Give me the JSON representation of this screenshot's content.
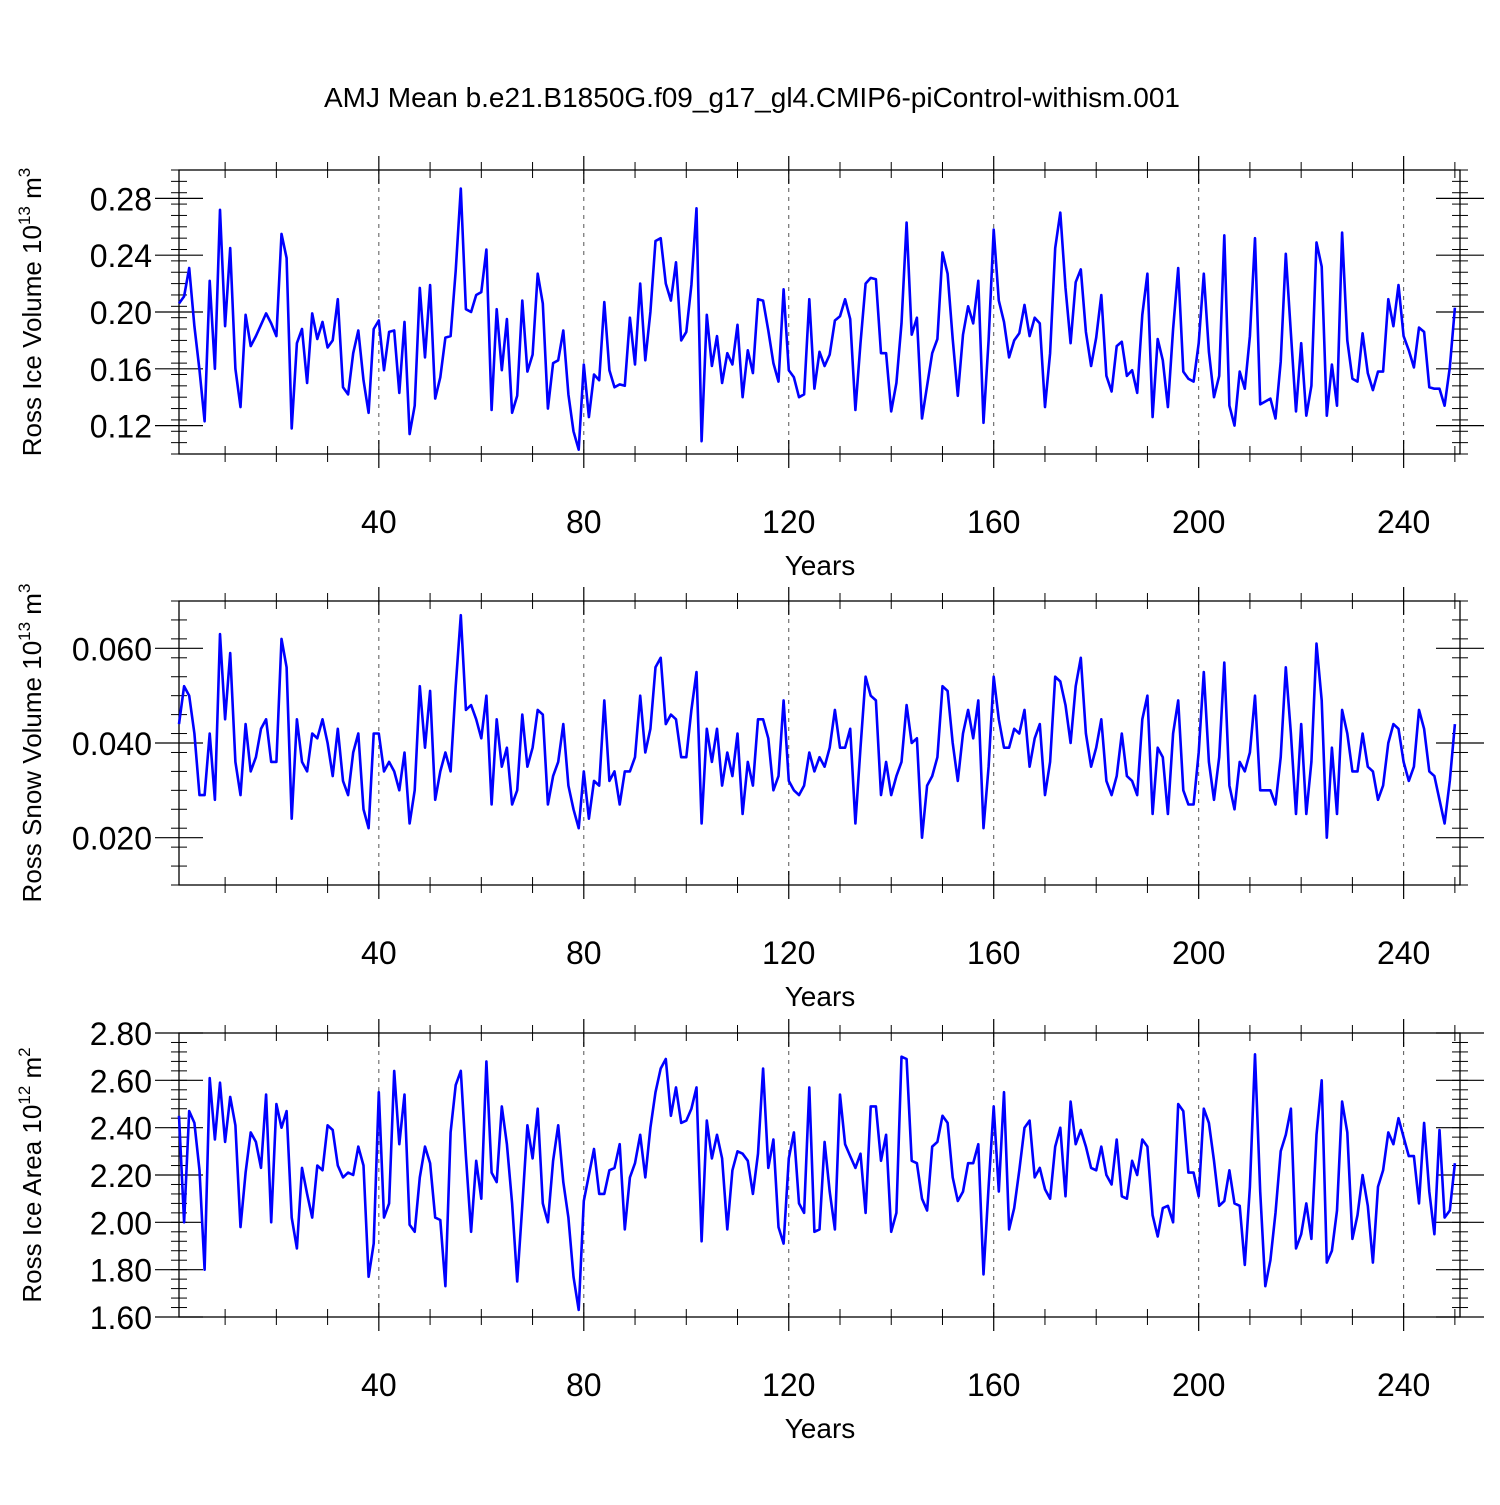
{
  "title": "AMJ Mean b.e21.B1850G.f09_g17_gl4.CMIP6-piControl-withism.001",
  "line_color": "#0000ff",
  "chart_data": [
    {
      "type": "line",
      "ylabel_main": "Ross Ice Volume 10",
      "ylabel_exp": "13",
      "ylabel_unit": " m",
      "ylabel_unit_exp": "3",
      "xlabel": "Years",
      "xlim": [
        1,
        251
      ],
      "ylim": [
        0.1,
        0.3
      ],
      "xticks": [
        40,
        80,
        120,
        160,
        200,
        240
      ],
      "xtick_labels": [
        "40",
        "80",
        "120",
        "160",
        "200",
        "240"
      ],
      "yticks": [
        0.12,
        0.16,
        0.2,
        0.24,
        0.28
      ],
      "ytick_labels": [
        "0.12",
        "0.16",
        "0.20",
        "0.24",
        "0.28"
      ],
      "grid": "vertical dashed at major x ticks",
      "series": [
        {
          "x_start": 1,
          "values": [
            0.206,
            0.211,
            0.231,
            0.19,
            0.159,
            0.123,
            0.222,
            0.16,
            0.272,
            0.19,
            0.245,
            0.16,
            0.133,
            0.198,
            0.176,
            0.183,
            0.191,
            0.199,
            0.192,
            0.183,
            0.255,
            0.238,
            0.118,
            0.178,
            0.188,
            0.15,
            0.199,
            0.181,
            0.193,
            0.175,
            0.18,
            0.209,
            0.147,
            0.142,
            0.171,
            0.187,
            0.152,
            0.129,
            0.188,
            0.194,
            0.159,
            0.186,
            0.187,
            0.143,
            0.193,
            0.114,
            0.134,
            0.217,
            0.168,
            0.219,
            0.139,
            0.154,
            0.182,
            0.183,
            0.229,
            0.287,
            0.202,
            0.2,
            0.212,
            0.214,
            0.244,
            0.131,
            0.202,
            0.159,
            0.195,
            0.129,
            0.141,
            0.208,
            0.158,
            0.17,
            0.227,
            0.206,
            0.132,
            0.164,
            0.166,
            0.187,
            0.142,
            0.116,
            0.103,
            0.163,
            0.126,
            0.156,
            0.152,
            0.207,
            0.159,
            0.147,
            0.149,
            0.148,
            0.196,
            0.163,
            0.22,
            0.166,
            0.2,
            0.25,
            0.252,
            0.22,
            0.208,
            0.235,
            0.18,
            0.186,
            0.219,
            0.273,
            0.109,
            0.198,
            0.162,
            0.183,
            0.15,
            0.171,
            0.163,
            0.191,
            0.14,
            0.173,
            0.157,
            0.209,
            0.208,
            0.187,
            0.164,
            0.151,
            0.216,
            0.159,
            0.154,
            0.14,
            0.142,
            0.209,
            0.146,
            0.172,
            0.162,
            0.17,
            0.194,
            0.197,
            0.209,
            0.195,
            0.131,
            0.178,
            0.22,
            0.224,
            0.223,
            0.171,
            0.171,
            0.13,
            0.15,
            0.192,
            0.263,
            0.184,
            0.196,
            0.125,
            0.148,
            0.171,
            0.181,
            0.242,
            0.227,
            0.181,
            0.141,
            0.184,
            0.204,
            0.192,
            0.222,
            0.122,
            0.18,
            0.258,
            0.208,
            0.193,
            0.168,
            0.18,
            0.185,
            0.205,
            0.183,
            0.196,
            0.192,
            0.133,
            0.171,
            0.245,
            0.27,
            0.217,
            0.178,
            0.221,
            0.23,
            0.186,
            0.162,
            0.182,
            0.212,
            0.155,
            0.144,
            0.176,
            0.179,
            0.155,
            0.159,
            0.143,
            0.198,
            0.227,
            0.126,
            0.181,
            0.166,
            0.133,
            0.188,
            0.231,
            0.158,
            0.153,
            0.151,
            0.178,
            0.227,
            0.172,
            0.14,
            0.155,
            0.254,
            0.134,
            0.12,
            0.158,
            0.146,
            0.183,
            0.252,
            0.135,
            0.137,
            0.139,
            0.125,
            0.165,
            0.241,
            0.185,
            0.13,
            0.178,
            0.127,
            0.148,
            0.249,
            0.232,
            0.127,
            0.163,
            0.134,
            0.256,
            0.18,
            0.153,
            0.151,
            0.185,
            0.157,
            0.145,
            0.158,
            0.158,
            0.209,
            0.19,
            0.219,
            0.183,
            0.173,
            0.161,
            0.189,
            0.186,
            0.147,
            0.146,
            0.146,
            0.134,
            0.161,
            0.203
          ]
        }
      ]
    },
    {
      "type": "line",
      "ylabel_main": "Ross Snow Volume 10",
      "ylabel_exp": "13",
      "ylabel_unit": " m",
      "ylabel_unit_exp": "3",
      "xlabel": "Years",
      "xlim": [
        1,
        251
      ],
      "ylim": [
        0.01,
        0.07
      ],
      "xticks": [
        40,
        80,
        120,
        160,
        200,
        240
      ],
      "xtick_labels": [
        "40",
        "80",
        "120",
        "160",
        "200",
        "240"
      ],
      "yticks": [
        0.02,
        0.04,
        0.06
      ],
      "ytick_labels": [
        "0.020",
        "0.040",
        "0.060"
      ],
      "grid": "vertical dashed at major x ticks",
      "series": [
        {
          "x_start": 1,
          "values": [
            0.044,
            0.052,
            0.05,
            0.042,
            0.029,
            0.029,
            0.042,
            0.028,
            0.063,
            0.045,
            0.059,
            0.036,
            0.029,
            0.044,
            0.034,
            0.037,
            0.043,
            0.045,
            0.036,
            0.036,
            0.062,
            0.056,
            0.024,
            0.045,
            0.036,
            0.034,
            0.042,
            0.041,
            0.045,
            0.04,
            0.033,
            0.043,
            0.032,
            0.029,
            0.038,
            0.042,
            0.026,
            0.022,
            0.042,
            0.042,
            0.034,
            0.036,
            0.034,
            0.03,
            0.038,
            0.023,
            0.03,
            0.052,
            0.039,
            0.051,
            0.028,
            0.034,
            0.038,
            0.034,
            0.052,
            0.067,
            0.047,
            0.048,
            0.045,
            0.041,
            0.05,
            0.027,
            0.045,
            0.035,
            0.039,
            0.027,
            0.03,
            0.046,
            0.035,
            0.039,
            0.047,
            0.046,
            0.027,
            0.033,
            0.036,
            0.044,
            0.031,
            0.026,
            0.022,
            0.034,
            0.024,
            0.032,
            0.031,
            0.049,
            0.032,
            0.034,
            0.027,
            0.034,
            0.034,
            0.037,
            0.05,
            0.038,
            0.043,
            0.056,
            0.058,
            0.044,
            0.046,
            0.045,
            0.037,
            0.037,
            0.047,
            0.055,
            0.023,
            0.043,
            0.036,
            0.043,
            0.031,
            0.038,
            0.033,
            0.042,
            0.025,
            0.036,
            0.031,
            0.045,
            0.045,
            0.041,
            0.03,
            0.033,
            0.049,
            0.032,
            0.03,
            0.029,
            0.031,
            0.038,
            0.034,
            0.037,
            0.035,
            0.039,
            0.047,
            0.039,
            0.039,
            0.043,
            0.023,
            0.039,
            0.054,
            0.05,
            0.049,
            0.029,
            0.036,
            0.029,
            0.033,
            0.036,
            0.048,
            0.04,
            0.041,
            0.02,
            0.031,
            0.033,
            0.037,
            0.052,
            0.051,
            0.04,
            0.032,
            0.042,
            0.047,
            0.041,
            0.049,
            0.022,
            0.035,
            0.054,
            0.045,
            0.039,
            0.039,
            0.043,
            0.042,
            0.047,
            0.035,
            0.041,
            0.044,
            0.029,
            0.036,
            0.054,
            0.053,
            0.048,
            0.04,
            0.052,
            0.058,
            0.042,
            0.035,
            0.039,
            0.045,
            0.032,
            0.029,
            0.033,
            0.042,
            0.033,
            0.032,
            0.029,
            0.045,
            0.05,
            0.025,
            0.039,
            0.037,
            0.025,
            0.042,
            0.049,
            0.03,
            0.027,
            0.027,
            0.038,
            0.055,
            0.036,
            0.028,
            0.037,
            0.057,
            0.031,
            0.026,
            0.036,
            0.034,
            0.038,
            0.05,
            0.03,
            0.03,
            0.03,
            0.027,
            0.037,
            0.056,
            0.042,
            0.025,
            0.044,
            0.025,
            0.036,
            0.061,
            0.049,
            0.02,
            0.039,
            0.025,
            0.047,
            0.042,
            0.034,
            0.034,
            0.042,
            0.035,
            0.034,
            0.028,
            0.031,
            0.04,
            0.044,
            0.043,
            0.036,
            0.032,
            0.035,
            0.047,
            0.043,
            0.034,
            0.033,
            0.028,
            0.023,
            0.032,
            0.044
          ]
        }
      ]
    },
    {
      "type": "line",
      "ylabel_main": "Ross Ice Area 10",
      "ylabel_exp": "12",
      "ylabel_unit": " m",
      "ylabel_unit_exp": "2",
      "xlabel": "Years",
      "xlim": [
        1,
        251
      ],
      "ylim": [
        1.6,
        2.8
      ],
      "xticks": [
        40,
        80,
        120,
        160,
        200,
        240
      ],
      "xtick_labels": [
        "40",
        "80",
        "120",
        "160",
        "200",
        "240"
      ],
      "yticks": [
        1.6,
        1.8,
        2.0,
        2.2,
        2.4,
        2.6,
        2.8
      ],
      "ytick_labels": [
        "1.60",
        "1.80",
        "2.00",
        "2.20",
        "2.40",
        "2.60",
        "2.80"
      ],
      "grid": "vertical dashed at major x ticks",
      "series": [
        {
          "x_start": 1,
          "values": [
            2.45,
            2.0,
            2.47,
            2.42,
            2.22,
            1.8,
            2.61,
            2.35,
            2.59,
            2.34,
            2.53,
            2.41,
            1.98,
            2.21,
            2.38,
            2.34,
            2.23,
            2.54,
            2.0,
            2.5,
            2.4,
            2.47,
            2.02,
            1.89,
            2.23,
            2.12,
            2.02,
            2.24,
            2.22,
            2.41,
            2.39,
            2.24,
            2.19,
            2.21,
            2.2,
            2.32,
            2.24,
            1.77,
            1.91,
            2.55,
            2.02,
            2.08,
            2.64,
            2.33,
            2.54,
            1.99,
            1.96,
            2.19,
            2.32,
            2.25,
            2.02,
            2.01,
            1.73,
            2.38,
            2.58,
            2.64,
            2.28,
            1.96,
            2.26,
            2.1,
            2.68,
            2.21,
            2.17,
            2.49,
            2.33,
            2.08,
            1.75,
            2.07,
            2.41,
            2.27,
            2.48,
            2.08,
            2.0,
            2.26,
            2.41,
            2.17,
            2.02,
            1.77,
            1.63,
            2.09,
            2.2,
            2.31,
            2.12,
            2.12,
            2.22,
            2.23,
            2.33,
            1.97,
            2.19,
            2.25,
            2.37,
            2.19,
            2.4,
            2.55,
            2.65,
            2.69,
            2.45,
            2.57,
            2.42,
            2.43,
            2.48,
            2.57,
            1.92,
            2.43,
            2.27,
            2.37,
            2.27,
            1.97,
            2.22,
            2.3,
            2.29,
            2.26,
            2.12,
            2.29,
            2.65,
            2.23,
            2.35,
            1.98,
            1.91,
            2.27,
            2.38,
            2.08,
            2.04,
            2.57,
            1.96,
            1.97,
            2.34,
            2.13,
            1.97,
            2.54,
            2.33,
            2.28,
            2.23,
            2.29,
            2.04,
            2.49,
            2.49,
            2.26,
            2.37,
            1.96,
            2.04,
            2.7,
            2.69,
            2.26,
            2.25,
            2.1,
            2.05,
            2.32,
            2.34,
            2.45,
            2.42,
            2.19,
            2.09,
            2.13,
            2.25,
            2.25,
            2.33,
            1.78,
            2.15,
            2.49,
            2.13,
            2.55,
            1.97,
            2.06,
            2.22,
            2.4,
            2.43,
            2.19,
            2.23,
            2.14,
            2.1,
            2.32,
            2.4,
            2.11,
            2.51,
            2.33,
            2.39,
            2.32,
            2.23,
            2.22,
            2.32,
            2.2,
            2.16,
            2.35,
            2.11,
            2.1,
            2.26,
            2.2,
            2.35,
            2.32,
            2.03,
            1.94,
            2.06,
            2.07,
            2.0,
            2.5,
            2.47,
            2.21,
            2.21,
            2.11,
            2.48,
            2.42,
            2.26,
            2.07,
            2.09,
            2.22,
            2.08,
            2.07,
            1.82,
            2.15,
            2.71,
            2.13,
            1.73,
            1.84,
            2.04,
            2.3,
            2.37,
            2.48,
            1.89,
            1.95,
            2.08,
            1.93,
            2.37,
            2.6,
            1.83,
            1.88,
            2.05,
            2.51,
            2.38,
            1.93,
            2.03,
            2.2,
            2.07,
            1.83,
            2.15,
            2.22,
            2.38,
            2.33,
            2.44,
            2.36,
            2.28,
            2.28,
            2.08,
            2.42,
            2.13,
            1.95,
            2.39,
            2.02,
            2.05,
            2.25
          ]
        }
      ]
    }
  ]
}
